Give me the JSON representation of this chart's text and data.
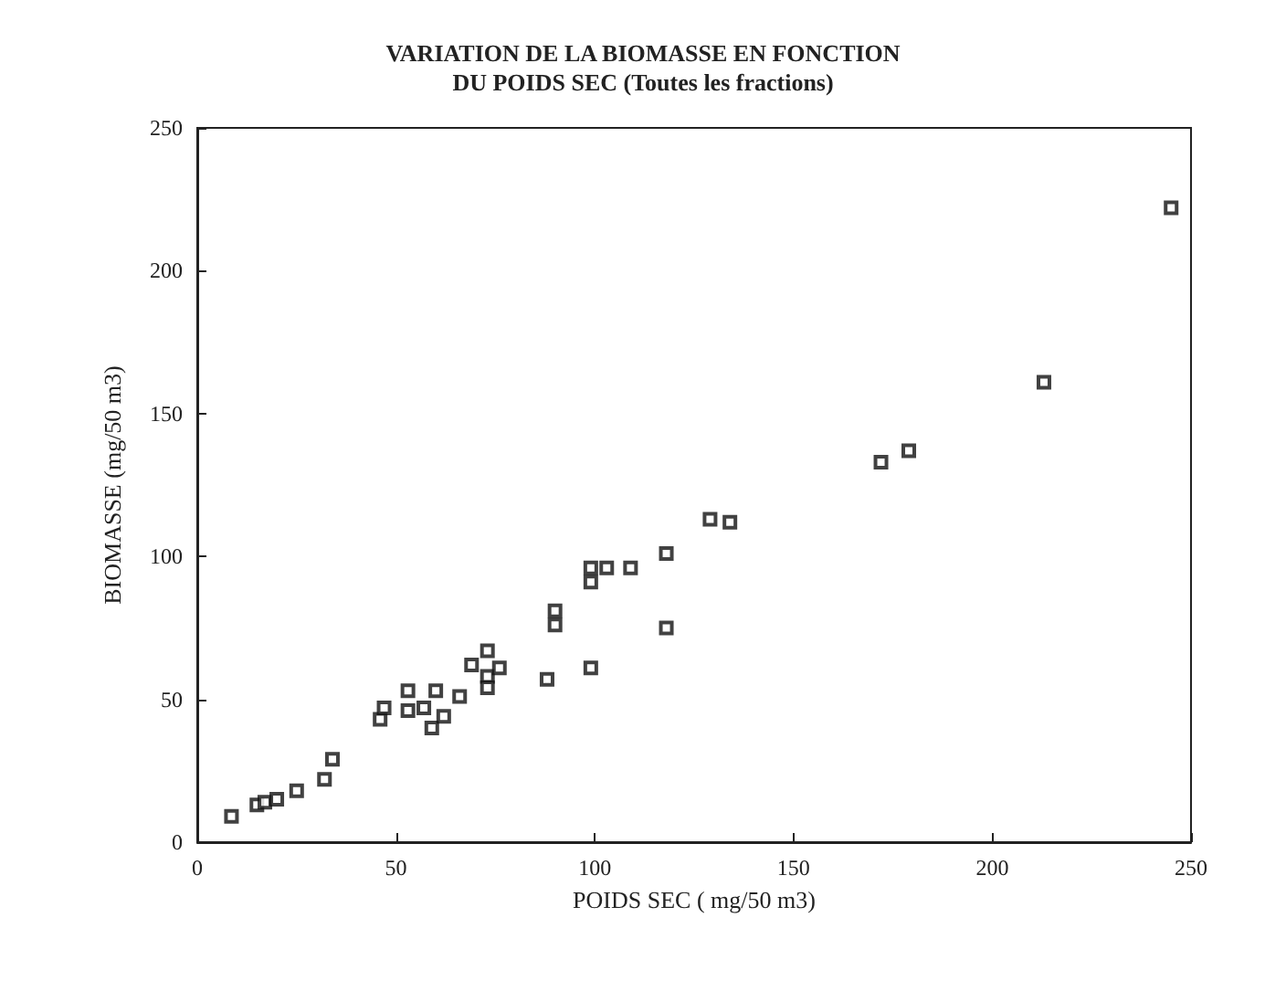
{
  "chart_data": {
    "type": "scatter",
    "title": "VARIATION DE LA BIOMASSE EN FONCTION\nDU POIDS SEC (Toutes les fractions)",
    "xlabel": "POIDS SEC ( mg/50 m3)",
    "ylabel": "BIOMASSE (mg/50 m3)",
    "x": [
      8.6,
      15,
      17,
      20,
      25,
      32,
      34,
      46,
      47,
      53,
      53,
      57,
      59,
      60,
      62,
      66,
      69,
      73,
      73,
      76,
      73,
      88,
      90,
      90,
      99,
      99,
      99,
      103,
      109,
      118,
      118,
      129,
      134,
      172,
      179,
      213,
      245
    ],
    "values": [
      9,
      13,
      14,
      15,
      18,
      22,
      29,
      43,
      47,
      46,
      53,
      47,
      40,
      53,
      44,
      51,
      62,
      67,
      58,
      61,
      54,
      57,
      81,
      76,
      61,
      96,
      91,
      96,
      96,
      101,
      75,
      113,
      112,
      133,
      137,
      161,
      222
    ],
    "color": "#111111",
    "marker": "square",
    "xlim": [
      0,
      250
    ],
    "ylim": [
      0,
      250
    ],
    "xticks": [
      0,
      50,
      100,
      150,
      200,
      250
    ],
    "yticks": [
      0,
      50,
      100,
      150,
      200,
      250
    ],
    "grid": false
  }
}
